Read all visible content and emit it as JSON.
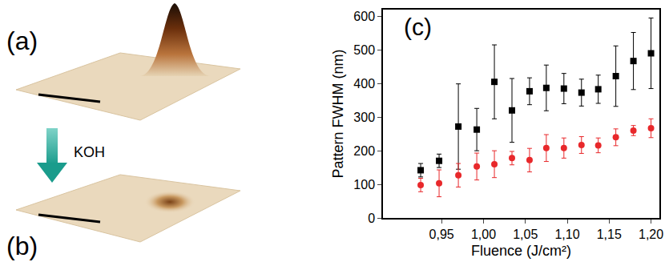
{
  "chart_data": {
    "type": "scatter",
    "x_label": "Fluence (J/cm²)",
    "y_label": "Pattern FWHM (nm)",
    "x": [
      0.925,
      0.947,
      0.97,
      0.992,
      1.013,
      1.034,
      1.055,
      1.075,
      1.096,
      1.117,
      1.137,
      1.158,
      1.179,
      1.2
    ],
    "series": [
      {
        "color": "#000000",
        "marker": "square",
        "values": [
          142,
          170,
          272,
          263,
          405,
          320,
          377,
          387,
          385,
          373,
          383,
          422,
          467,
          490
        ],
        "errors": [
          20,
          20,
          127,
          63,
          110,
          95,
          40,
          68,
          45,
          40,
          42,
          90,
          85,
          105
        ]
      },
      {
        "color": "#e8282b",
        "marker": "circle",
        "values": [
          98,
          103,
          127,
          153,
          160,
          178,
          172,
          208,
          208,
          217,
          216,
          240,
          260,
          267
        ],
        "errors": [
          20,
          40,
          35,
          40,
          40,
          20,
          35,
          40,
          30,
          25,
          22,
          25,
          15,
          28
        ]
      }
    ],
    "xlim": [
      0.88,
      1.21
    ],
    "xticks": [
      {
        "value": 0.95,
        "label": "0,95"
      },
      {
        "value": 1.0,
        "label": "1,00"
      },
      {
        "value": 1.05,
        "label": "1,05"
      },
      {
        "value": 1.1,
        "label": "1,10"
      },
      {
        "value": 1.15,
        "label": "1,15"
      },
      {
        "value": 1.2,
        "label": "1,20"
      }
    ],
    "ylim": [
      0,
      620
    ],
    "yticks": [
      0,
      100,
      200,
      300,
      400,
      500,
      600
    ],
    "grid": false,
    "annotations": [
      "(a)",
      "(b)",
      "KOH",
      "(c)"
    ]
  }
}
